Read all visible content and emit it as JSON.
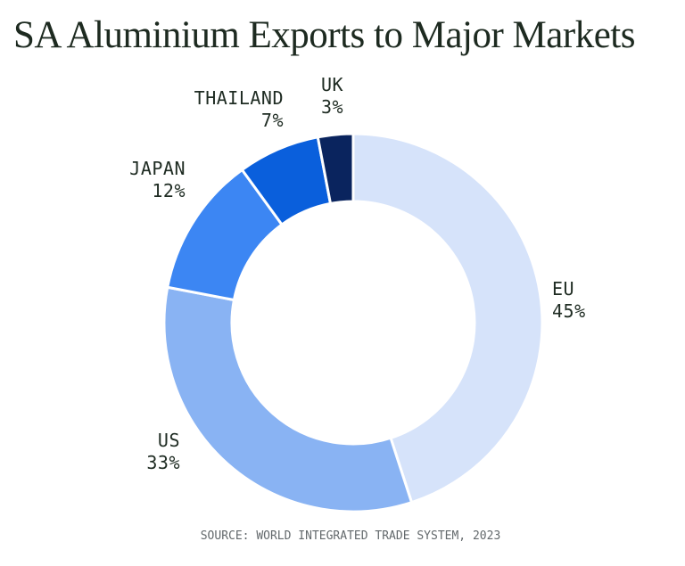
{
  "chart_data": {
    "type": "pie",
    "variant": "donut",
    "title": "SA Aluminium Exports to Major Markets",
    "source": "SOURCE: WORLD INTEGRATED TRADE SYSTEM, 2023",
    "start_angle_deg": 0,
    "direction": "clockwise",
    "inner_radius_ratio": 0.64,
    "gap_stroke_color": "#ffffff",
    "background_color": "#ffffff",
    "title_color": "#1d2a20",
    "label_color": "#1e2b22",
    "source_color": "#63696c",
    "legend_position": "labels-around-slices",
    "segments": [
      {
        "label": "EU",
        "value": 45,
        "display": "45%",
        "color": "#d6e3fa"
      },
      {
        "label": "US",
        "value": 33,
        "display": "33%",
        "color": "#89b3f3"
      },
      {
        "label": "JAPAN",
        "value": 12,
        "display": "12%",
        "color": "#3c86f3"
      },
      {
        "label": "THAILAND",
        "value": 7,
        "display": "7%",
        "color": "#0a5fdc"
      },
      {
        "label": "UK",
        "value": 3,
        "display": "3%",
        "color": "#0a245e"
      }
    ]
  }
}
